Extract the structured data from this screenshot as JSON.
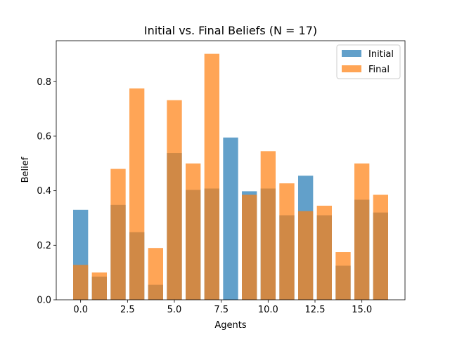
{
  "chart_data": {
    "type": "bar",
    "title": "Initial vs. Final Beliefs (N = 17)",
    "xlabel": "Agents",
    "ylabel": "Belief",
    "x": [
      0,
      1,
      2,
      3,
      4,
      5,
      6,
      7,
      8,
      9,
      10,
      11,
      12,
      13,
      14,
      15,
      16
    ],
    "xlim": [
      -1.3,
      17.3
    ],
    "ylim": [
      0,
      0.95
    ],
    "xticks": [
      0.0,
      2.5,
      5.0,
      7.5,
      10.0,
      12.5,
      15.0
    ],
    "xtick_labels": [
      "0.0",
      "2.5",
      "5.0",
      "7.5",
      "10.0",
      "12.5",
      "15.0"
    ],
    "yticks": [
      0.0,
      0.2,
      0.4,
      0.6,
      0.8
    ],
    "ytick_labels": [
      "0.0",
      "0.2",
      "0.4",
      "0.6",
      "0.8"
    ],
    "grid": false,
    "legend_position": "top-right",
    "series": [
      {
        "name": "Initial",
        "color": "#1f77b4",
        "opacity": 0.7,
        "values": [
          0.33,
          0.085,
          0.348,
          0.248,
          0.055,
          0.538,
          0.403,
          0.408,
          0.595,
          0.398,
          0.408,
          0.31,
          0.455,
          0.31,
          0.125,
          0.367,
          0.32
        ]
      },
      {
        "name": "Final",
        "color": "#ff7f0e",
        "opacity": 0.7,
        "values": [
          0.128,
          0.1,
          0.48,
          0.775,
          0.19,
          0.732,
          0.5,
          0.902,
          0.0,
          0.385,
          0.545,
          0.427,
          0.325,
          0.345,
          0.175,
          0.5,
          0.385
        ]
      }
    ]
  }
}
